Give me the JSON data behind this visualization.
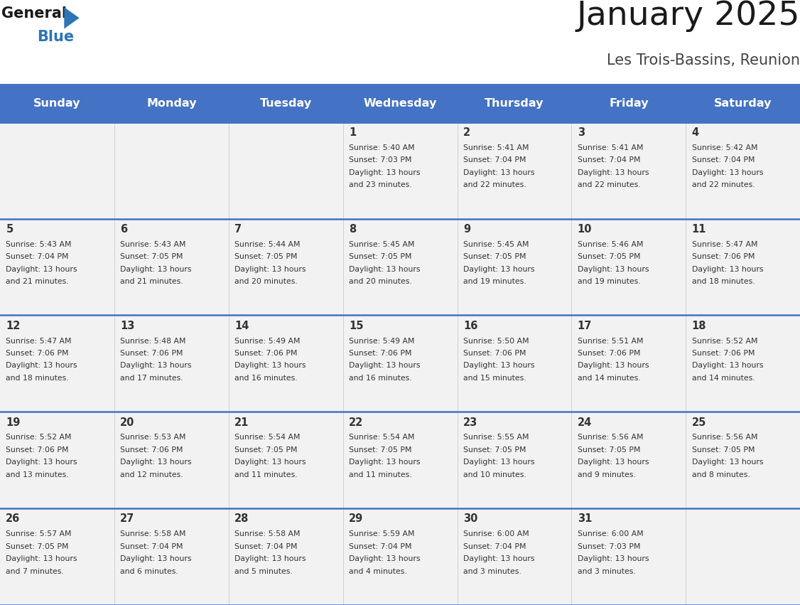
{
  "title": "January 2025",
  "subtitle": "Les Trois-Bassins, Reunion",
  "days_of_week": [
    "Sunday",
    "Monday",
    "Tuesday",
    "Wednesday",
    "Thursday",
    "Friday",
    "Saturday"
  ],
  "header_bg": "#4472C4",
  "header_text": "#FFFFFF",
  "cell_bg": "#F2F2F2",
  "text_color": "#333333",
  "divider_color": "#4472C4",
  "cell_border_color": "#BBBBBB",
  "calendar": [
    [
      null,
      null,
      null,
      {
        "day": 1,
        "sunrise": "5:40 AM",
        "sunset": "7:03 PM",
        "daylight_h": "13 hours",
        "daylight_m": "and 23 minutes."
      },
      {
        "day": 2,
        "sunrise": "5:41 AM",
        "sunset": "7:04 PM",
        "daylight_h": "13 hours",
        "daylight_m": "and 22 minutes."
      },
      {
        "day": 3,
        "sunrise": "5:41 AM",
        "sunset": "7:04 PM",
        "daylight_h": "13 hours",
        "daylight_m": "and 22 minutes."
      },
      {
        "day": 4,
        "sunrise": "5:42 AM",
        "sunset": "7:04 PM",
        "daylight_h": "13 hours",
        "daylight_m": "and 22 minutes."
      }
    ],
    [
      {
        "day": 5,
        "sunrise": "5:43 AM",
        "sunset": "7:04 PM",
        "daylight_h": "13 hours",
        "daylight_m": "and 21 minutes."
      },
      {
        "day": 6,
        "sunrise": "5:43 AM",
        "sunset": "7:05 PM",
        "daylight_h": "13 hours",
        "daylight_m": "and 21 minutes."
      },
      {
        "day": 7,
        "sunrise": "5:44 AM",
        "sunset": "7:05 PM",
        "daylight_h": "13 hours",
        "daylight_m": "and 20 minutes."
      },
      {
        "day": 8,
        "sunrise": "5:45 AM",
        "sunset": "7:05 PM",
        "daylight_h": "13 hours",
        "daylight_m": "and 20 minutes."
      },
      {
        "day": 9,
        "sunrise": "5:45 AM",
        "sunset": "7:05 PM",
        "daylight_h": "13 hours",
        "daylight_m": "and 19 minutes."
      },
      {
        "day": 10,
        "sunrise": "5:46 AM",
        "sunset": "7:05 PM",
        "daylight_h": "13 hours",
        "daylight_m": "and 19 minutes."
      },
      {
        "day": 11,
        "sunrise": "5:47 AM",
        "sunset": "7:06 PM",
        "daylight_h": "13 hours",
        "daylight_m": "and 18 minutes."
      }
    ],
    [
      {
        "day": 12,
        "sunrise": "5:47 AM",
        "sunset": "7:06 PM",
        "daylight_h": "13 hours",
        "daylight_m": "and 18 minutes."
      },
      {
        "day": 13,
        "sunrise": "5:48 AM",
        "sunset": "7:06 PM",
        "daylight_h": "13 hours",
        "daylight_m": "and 17 minutes."
      },
      {
        "day": 14,
        "sunrise": "5:49 AM",
        "sunset": "7:06 PM",
        "daylight_h": "13 hours",
        "daylight_m": "and 16 minutes."
      },
      {
        "day": 15,
        "sunrise": "5:49 AM",
        "sunset": "7:06 PM",
        "daylight_h": "13 hours",
        "daylight_m": "and 16 minutes."
      },
      {
        "day": 16,
        "sunrise": "5:50 AM",
        "sunset": "7:06 PM",
        "daylight_h": "13 hours",
        "daylight_m": "and 15 minutes."
      },
      {
        "day": 17,
        "sunrise": "5:51 AM",
        "sunset": "7:06 PM",
        "daylight_h": "13 hours",
        "daylight_m": "and 14 minutes."
      },
      {
        "day": 18,
        "sunrise": "5:52 AM",
        "sunset": "7:06 PM",
        "daylight_h": "13 hours",
        "daylight_m": "and 14 minutes."
      }
    ],
    [
      {
        "day": 19,
        "sunrise": "5:52 AM",
        "sunset": "7:06 PM",
        "daylight_h": "13 hours",
        "daylight_m": "and 13 minutes."
      },
      {
        "day": 20,
        "sunrise": "5:53 AM",
        "sunset": "7:06 PM",
        "daylight_h": "13 hours",
        "daylight_m": "and 12 minutes."
      },
      {
        "day": 21,
        "sunrise": "5:54 AM",
        "sunset": "7:05 PM",
        "daylight_h": "13 hours",
        "daylight_m": "and 11 minutes."
      },
      {
        "day": 22,
        "sunrise": "5:54 AM",
        "sunset": "7:05 PM",
        "daylight_h": "13 hours",
        "daylight_m": "and 11 minutes."
      },
      {
        "day": 23,
        "sunrise": "5:55 AM",
        "sunset": "7:05 PM",
        "daylight_h": "13 hours",
        "daylight_m": "and 10 minutes."
      },
      {
        "day": 24,
        "sunrise": "5:56 AM",
        "sunset": "7:05 PM",
        "daylight_h": "13 hours",
        "daylight_m": "and 9 minutes."
      },
      {
        "day": 25,
        "sunrise": "5:56 AM",
        "sunset": "7:05 PM",
        "daylight_h": "13 hours",
        "daylight_m": "and 8 minutes."
      }
    ],
    [
      {
        "day": 26,
        "sunrise": "5:57 AM",
        "sunset": "7:05 PM",
        "daylight_h": "13 hours",
        "daylight_m": "and 7 minutes."
      },
      {
        "day": 27,
        "sunrise": "5:58 AM",
        "sunset": "7:04 PM",
        "daylight_h": "13 hours",
        "daylight_m": "and 6 minutes."
      },
      {
        "day": 28,
        "sunrise": "5:58 AM",
        "sunset": "7:04 PM",
        "daylight_h": "13 hours",
        "daylight_m": "and 5 minutes."
      },
      {
        "day": 29,
        "sunrise": "5:59 AM",
        "sunset": "7:04 PM",
        "daylight_h": "13 hours",
        "daylight_m": "and 4 minutes."
      },
      {
        "day": 30,
        "sunrise": "6:00 AM",
        "sunset": "7:04 PM",
        "daylight_h": "13 hours",
        "daylight_m": "and 3 minutes."
      },
      {
        "day": 31,
        "sunrise": "6:00 AM",
        "sunset": "7:03 PM",
        "daylight_h": "13 hours",
        "daylight_m": "and 3 minutes."
      },
      null
    ]
  ],
  "logo_color_general": "#1A1A1A",
  "logo_color_blue": "#2E75B6",
  "logo_triangle_color": "#2E75B6",
  "title_color": "#1A1A1A",
  "subtitle_color": "#444444"
}
